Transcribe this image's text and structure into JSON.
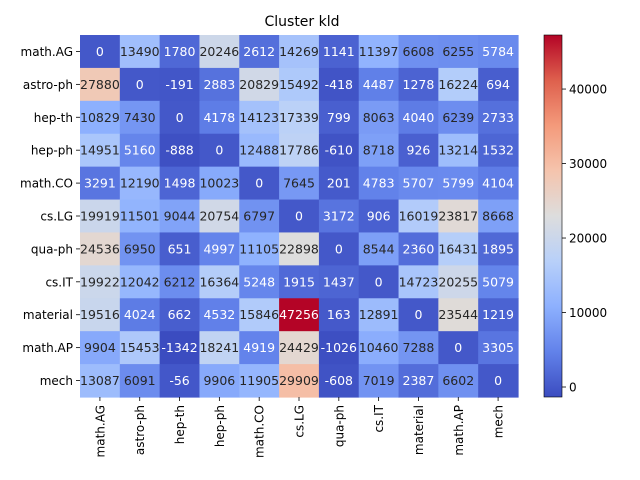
{
  "chart_data": {
    "type": "heatmap",
    "title": "Cluster kld",
    "xlabel": "",
    "ylabel": "",
    "row_labels": [
      "math.AG",
      "astro-ph",
      "hep-th",
      "hep-ph",
      "math.CO",
      "cs.LG",
      "qua-ph",
      "cs.IT",
      "material",
      "math.AP",
      "mech"
    ],
    "col_labels": [
      "math.AG",
      "astro-ph",
      "hep-th",
      "hep-ph",
      "math.CO",
      "cs.LG",
      "qua-ph",
      "cs.IT",
      "material",
      "math.AP",
      "mech"
    ],
    "values": [
      [
        0,
        13490,
        1780,
        20246,
        2612,
        14269,
        1141,
        11397,
        6608,
        6255,
        5784
      ],
      [
        27880,
        0,
        -191,
        2883,
        20829,
        15492,
        -418,
        4487,
        1278,
        16224,
        694
      ],
      [
        10829,
        7430,
        0,
        4178,
        14123,
        17339,
        799,
        8063,
        4040,
        6239,
        2733
      ],
      [
        14951,
        5160,
        -888,
        0,
        12488,
        17786,
        -610,
        8718,
        926,
        13214,
        1532
      ],
      [
        3291,
        12190,
        1498,
        10023,
        0,
        7645,
        201,
        4783,
        5707,
        5799,
        4104
      ],
      [
        19919,
        11501,
        9044,
        20754,
        6797,
        0,
        3172,
        906,
        16019,
        23817,
        8668
      ],
      [
        24536,
        6950,
        651,
        4997,
        11105,
        22898,
        0,
        8544,
        2360,
        16431,
        1895
      ],
      [
        19922,
        12042,
        6212,
        16364,
        5248,
        1915,
        1437,
        0,
        14723,
        20255,
        5079
      ],
      [
        19516,
        4024,
        662,
        4532,
        15846,
        47256,
        163,
        12891,
        0,
        23544,
        1219
      ],
      [
        9904,
        15453,
        -1342,
        18241,
        4919,
        24429,
        -1026,
        10460,
        7288,
        0,
        3305
      ],
      [
        13087,
        6091,
        -56,
        9906,
        11905,
        29909,
        -608,
        7019,
        2387,
        6602,
        0
      ]
    ],
    "colorscale": "coolwarm",
    "vmin": -1342,
    "vmax": 47256,
    "colorbar_ticks": [
      0,
      10000,
      20000,
      30000,
      40000
    ]
  }
}
